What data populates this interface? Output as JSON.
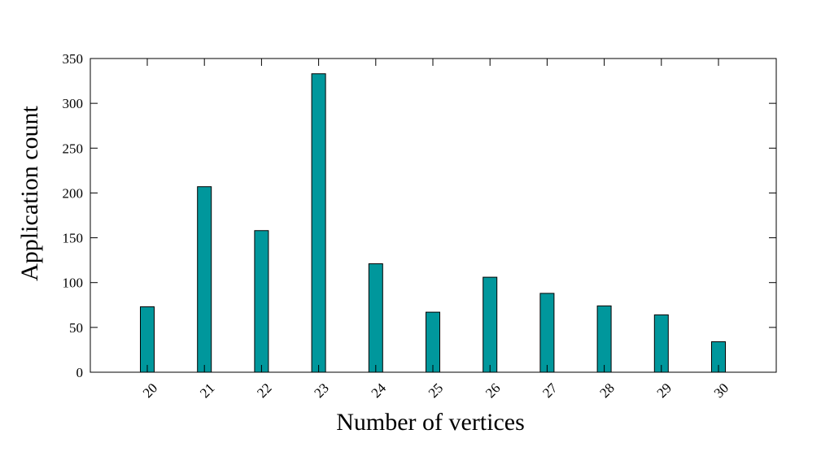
{
  "chart_data": {
    "type": "bar",
    "title": "",
    "xlabel": "Number of vertices",
    "ylabel": "Application count",
    "categories": [
      "20",
      "21",
      "22",
      "23",
      "24",
      "25",
      "26",
      "27",
      "28",
      "29",
      "30"
    ],
    "values": [
      73,
      207,
      158,
      333,
      121,
      67,
      106,
      88,
      74,
      64,
      34
    ],
    "ylim": [
      0,
      350
    ],
    "yticks": [
      "0",
      "50",
      "100",
      "150",
      "200",
      "250",
      "300",
      "350"
    ],
    "grid": false,
    "legend": "none",
    "colors": {
      "bar_fill": "#00979c",
      "bar_stroke": "#000000",
      "axis": "#000000"
    }
  }
}
